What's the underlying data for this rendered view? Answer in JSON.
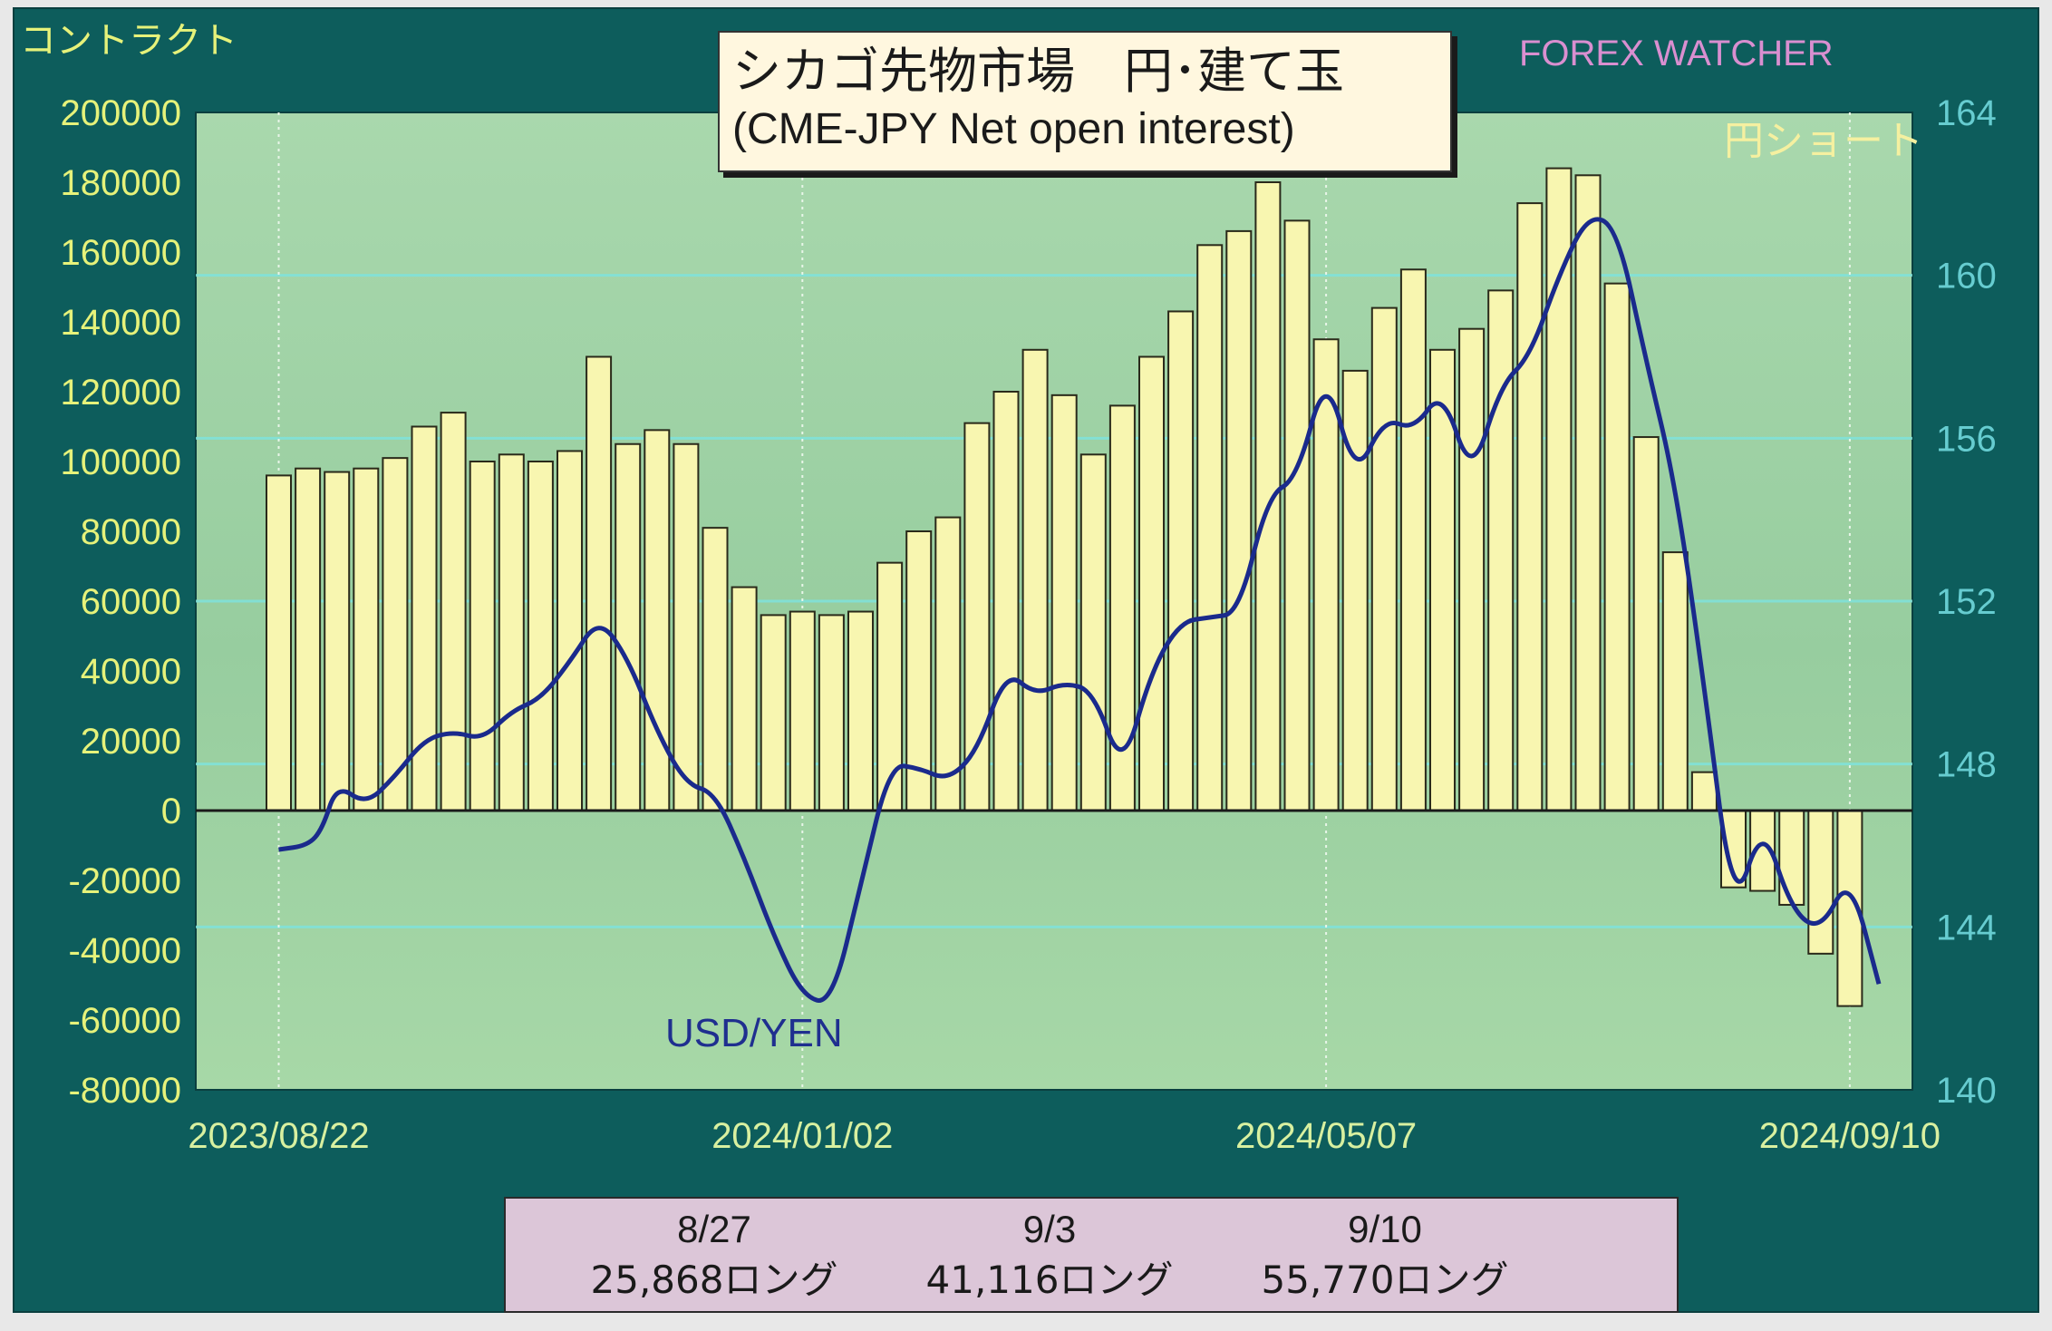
{
  "title": {
    "line1": "シカゴ先物市場　円･建て玉",
    "line2": "(CME-JPY Net open interest)"
  },
  "brand": "FOREX WATCHER",
  "yaxis_label": "コントラクト",
  "short_label": "円ショート",
  "usd_label": "USD/YEN",
  "footer": [
    {
      "date": "8/27",
      "value": "25,868ロング"
    },
    {
      "date": "9/3",
      "value": "41,116ロング"
    },
    {
      "date": "9/10",
      "value": "55,770ロング"
    }
  ],
  "colors": {
    "plot_bg": "#9fd0a5",
    "bar_fill": "#f8f6b0",
    "line": "#1a2a8c",
    "grid": "#7fe3dc"
  },
  "chart_data": {
    "type": "bar",
    "title": "シカゴ先物市場　円･建て玉 (CME-JPY Net open interest)",
    "ylabel_left": "コントラクト",
    "left_axis": {
      "ylim": [
        -80000,
        200000
      ],
      "ticks": [
        "200000",
        "180000",
        "160000",
        "140000",
        "120000",
        "100000",
        "80000",
        "60000",
        "40000",
        "20000",
        "0",
        "-20000",
        "-40000",
        "-60000",
        "-80000"
      ]
    },
    "right_axis": {
      "ylim": [
        140,
        164
      ],
      "ticks": [
        "164",
        "160",
        "156",
        "152",
        "148",
        "144",
        "140"
      ]
    },
    "x_tick_labels": [
      "2023/08/22",
      "2024/01/02",
      "2024/05/07",
      "2024/09/10"
    ],
    "series": [
      {
        "name": "円ショート",
        "axis": "left",
        "type": "bar",
        "values": [
          96000,
          98000,
          97000,
          98000,
          101000,
          110000,
          114000,
          100000,
          102000,
          100000,
          103000,
          130000,
          105000,
          109000,
          105000,
          81000,
          64000,
          56000,
          57000,
          56000,
          57000,
          71000,
          80000,
          84000,
          111000,
          120000,
          132000,
          119000,
          102000,
          116000,
          130000,
          143000,
          162000,
          166000,
          180000,
          169000,
          135000,
          126000,
          144000,
          155000,
          132000,
          138000,
          149000,
          174000,
          184000,
          182000,
          151000,
          107000,
          74000,
          11000,
          -22000,
          -23000,
          -27000,
          -41000,
          -56000
        ]
      },
      {
        "name": "USD/YEN",
        "axis": "right",
        "type": "line",
        "points": [
          [
            0,
            145.9
          ],
          [
            1,
            146.0
          ],
          [
            1.5,
            146.4
          ],
          [
            2,
            147.5
          ],
          [
            3,
            147.0
          ],
          [
            4,
            147.7
          ],
          [
            5,
            148.6
          ],
          [
            6,
            148.8
          ],
          [
            7,
            148.6
          ],
          [
            8,
            149.3
          ],
          [
            9,
            149.6
          ],
          [
            10,
            150.5
          ],
          [
            11,
            151.6
          ],
          [
            12,
            150.6
          ],
          [
            13,
            148.8
          ],
          [
            14,
            147.5
          ],
          [
            15,
            147.3
          ],
          [
            16,
            145.7
          ],
          [
            17,
            143.8
          ],
          [
            18,
            142.3
          ],
          [
            19,
            142.1
          ],
          [
            20,
            145.0
          ],
          [
            21,
            148.0
          ],
          [
            22,
            147.9
          ],
          [
            23,
            147.6
          ],
          [
            24,
            148.3
          ],
          [
            25,
            150.3
          ],
          [
            26,
            149.7
          ],
          [
            27,
            150.0
          ],
          [
            28,
            149.8
          ],
          [
            29,
            147.8
          ],
          [
            30,
            150.3
          ],
          [
            31,
            151.5
          ],
          [
            32,
            151.6
          ],
          [
            33,
            151.7
          ],
          [
            34,
            154.6
          ],
          [
            35,
            155.0
          ],
          [
            36,
            157.7
          ],
          [
            37,
            155.0
          ],
          [
            38,
            156.5
          ],
          [
            39,
            156.2
          ],
          [
            40,
            157.2
          ],
          [
            41,
            155.0
          ],
          [
            42,
            157.3
          ],
          [
            43,
            158.0
          ],
          [
            44,
            160.0
          ],
          [
            45,
            161.5
          ],
          [
            46,
            161.2
          ],
          [
            47,
            157.9
          ],
          [
            48,
            154.9
          ],
          [
            49,
            149.9
          ],
          [
            50,
            144.3
          ],
          [
            51,
            146.6
          ],
          [
            52,
            144.4
          ],
          [
            53,
            143.9
          ],
          [
            54,
            145.3
          ],
          [
            55,
            142.6
          ]
        ]
      }
    ],
    "grid": true,
    "legend": "none"
  }
}
